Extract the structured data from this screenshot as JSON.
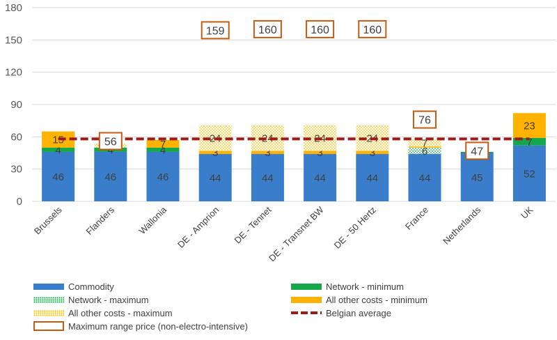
{
  "chart_data": {
    "type": "bar",
    "stacked": true,
    "title": "",
    "xlabel": "",
    "ylabel": "",
    "ylim": [
      0,
      180
    ],
    "yticks": [
      0,
      30,
      60,
      90,
      120,
      150,
      180
    ],
    "grid": true,
    "legend_position": "bottom",
    "categories": [
      "Brussels",
      "Flanders",
      "Wallonia",
      "DE - Amprion",
      "DE - Tennet",
      "DE - Transnet BW",
      "DE - 50 Hertz",
      "France",
      "Netherlands",
      "UK"
    ],
    "series": [
      {
        "key": "commodity",
        "name": "Commodity",
        "color": "#3a7dcb",
        "pattern": "solid",
        "values": [
          46,
          46,
          46,
          44,
          44,
          44,
          44,
          44,
          45,
          52
        ],
        "labels": [
          "46",
          "46",
          "46",
          "44",
          "44",
          "44",
          "44",
          "44",
          "45",
          "52"
        ]
      },
      {
        "key": "network_min",
        "name": "Network - minimum",
        "color": "#14a84b",
        "pattern": "solid",
        "values": [
          4,
          4,
          4,
          0,
          0,
          0,
          0,
          0,
          1,
          7
        ],
        "labels": [
          "4",
          "4",
          "4",
          "",
          "",
          "",
          "",
          "",
          "",
          "7"
        ]
      },
      {
        "key": "network_max",
        "name": "Network - maximum",
        "color": "#14a84b",
        "pattern": "dots",
        "values": [
          0,
          0,
          0,
          0,
          0,
          0,
          0,
          6,
          0,
          0
        ],
        "labels": [
          "",
          "",
          "",
          "",
          "",
          "",
          "",
          "6",
          "",
          ""
        ]
      },
      {
        "key": "other_min",
        "name": "All other costs - minimum",
        "color": "#ffb300",
        "pattern": "solid",
        "values": [
          15,
          0,
          7,
          3,
          3,
          3,
          3,
          1,
          0,
          23
        ],
        "labels": [
          "15",
          "",
          "7",
          "3",
          "3",
          "3",
          "3",
          "",
          "",
          "23"
        ]
      },
      {
        "key": "other_max",
        "name": "All other costs - maximum",
        "color": "#ffc000",
        "pattern": "dots",
        "values": [
          0,
          4,
          0,
          24,
          24,
          24,
          24,
          7,
          0,
          0
        ],
        "labels": [
          "",
          "4",
          "",
          "24",
          "24",
          "24",
          "24",
          "7",
          "",
          ""
        ]
      }
    ],
    "max_range_price": {
      "name": "Maximum range price (non-electro-intensive)",
      "color": "#c55a11",
      "values": [
        null,
        56,
        null,
        159,
        160,
        160,
        160,
        76,
        47,
        null
      ],
      "labels": [
        "",
        "56",
        "",
        "159",
        "160",
        "160",
        "160",
        "76",
        "47",
        ""
      ]
    },
    "belgian_average": {
      "name": "Belgian average",
      "value": 58,
      "color": "#9e1b1b"
    }
  }
}
